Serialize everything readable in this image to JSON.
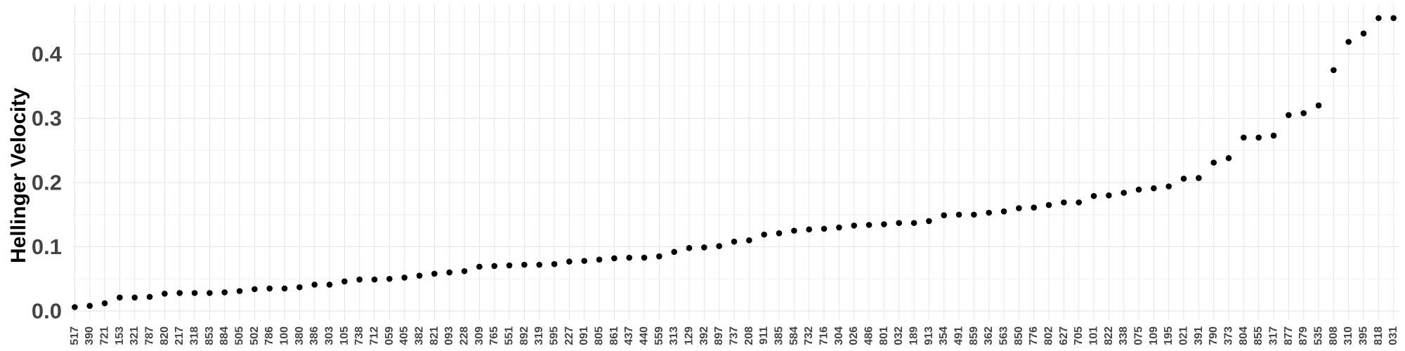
{
  "chart_data": {
    "type": "scatter",
    "title": "",
    "xlabel": "",
    "ylabel": "Hellinger Velocity",
    "ylim": [
      -0.007,
      0.477
    ],
    "yticks": [
      0.0,
      0.1,
      0.2,
      0.3,
      0.4
    ],
    "ytick_labels": [
      "0.0",
      "0.1",
      "0.2",
      "0.3",
      "0.4"
    ],
    "grid": true,
    "legend": "none",
    "colors": {
      "point": "#000000",
      "grid_major": "#e6e6e6",
      "grid_minor": "#f2f2f2",
      "tick_text": "#444444"
    },
    "categories": [
      "517",
      "390",
      "721",
      "153",
      "321",
      "787",
      "820",
      "217",
      "318",
      "853",
      "884",
      "505",
      "502",
      "786",
      "100",
      "380",
      "386",
      "303",
      "105",
      "738",
      "712",
      "059",
      "405",
      "382",
      "821",
      "093",
      "228",
      "309",
      "765",
      "551",
      "892",
      "319",
      "595",
      "227",
      "091",
      "805",
      "861",
      "437",
      "440",
      "559",
      "313",
      "129",
      "392",
      "897",
      "737",
      "208",
      "911",
      "385",
      "584",
      "732",
      "716",
      "304",
      "026",
      "486",
      "801",
      "032",
      "189",
      "913",
      "354",
      "491",
      "859",
      "362",
      "563",
      "850",
      "776",
      "802",
      "627",
      "705",
      "101",
      "822",
      "338",
      "075",
      "109",
      "195",
      "021",
      "391",
      "790",
      "373",
      "804",
      "855",
      "317",
      "877",
      "879",
      "535",
      "808",
      "310",
      "395",
      "818",
      "031"
    ],
    "values": [
      0.006,
      0.008,
      0.012,
      0.021,
      0.021,
      0.022,
      0.027,
      0.028,
      0.028,
      0.028,
      0.029,
      0.031,
      0.034,
      0.035,
      0.035,
      0.037,
      0.041,
      0.041,
      0.046,
      0.049,
      0.049,
      0.05,
      0.052,
      0.055,
      0.058,
      0.06,
      0.062,
      0.069,
      0.07,
      0.071,
      0.072,
      0.072,
      0.073,
      0.077,
      0.078,
      0.08,
      0.082,
      0.083,
      0.083,
      0.085,
      0.092,
      0.098,
      0.099,
      0.101,
      0.108,
      0.11,
      0.119,
      0.121,
      0.125,
      0.127,
      0.128,
      0.13,
      0.133,
      0.134,
      0.135,
      0.137,
      0.137,
      0.14,
      0.149,
      0.15,
      0.15,
      0.153,
      0.155,
      0.16,
      0.161,
      0.165,
      0.169,
      0.169,
      0.179,
      0.18,
      0.184,
      0.189,
      0.191,
      0.194,
      0.206,
      0.207,
      0.231,
      0.238,
      0.27,
      0.27,
      0.273,
      0.305,
      0.308,
      0.32,
      0.375,
      0.419,
      0.432,
      0.456,
      0.456
    ]
  }
}
